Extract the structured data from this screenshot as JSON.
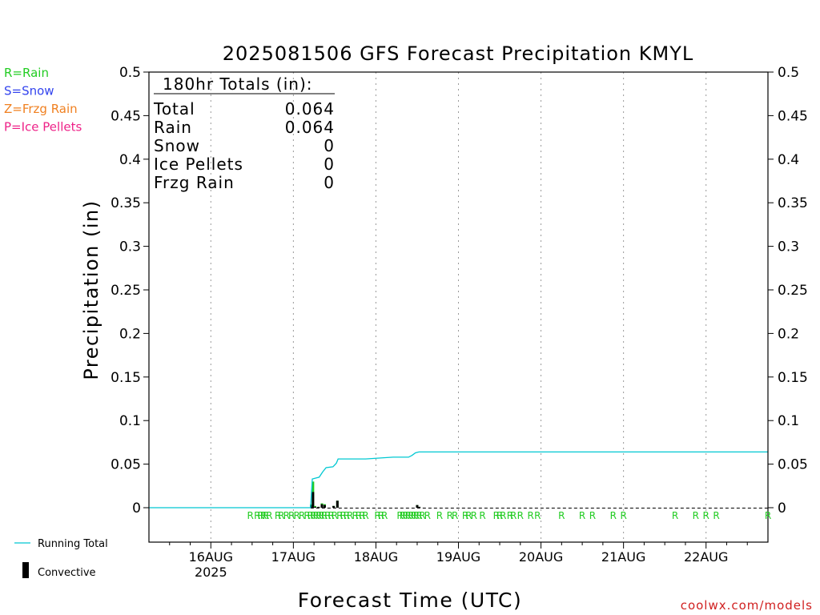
{
  "chart_data": {
    "type": "bar",
    "title": "2025081506 GFS Forecast Precipitation KMYL",
    "xlabel": "Forecast Time (UTC)",
    "ylabel": "Precipitation (in)",
    "ylim": [
      0,
      0.5
    ],
    "xlim_hours": [
      0,
      180
    ],
    "y_ticks": [
      0,
      0.05,
      0.1,
      0.15,
      0.2,
      0.25,
      0.3,
      0.35,
      0.4,
      0.45,
      0.5
    ],
    "y_tick_labels": [
      "0",
      "0.05",
      "0.1",
      "0.15",
      "0.2",
      "0.25",
      "0.3",
      "0.35",
      "0.4",
      "0.45",
      "0.5"
    ],
    "x_ticks": [
      {
        "label": "16AUG",
        "sublabel": "2025",
        "hour": 18
      },
      {
        "label": "17AUG",
        "sublabel": "",
        "hour": 42
      },
      {
        "label": "18AUG",
        "sublabel": "",
        "hour": 66
      },
      {
        "label": "19AUG",
        "sublabel": "",
        "hour": 90
      },
      {
        "label": "20AUG",
        "sublabel": "",
        "hour": 114
      },
      {
        "label": "21AUG",
        "sublabel": "",
        "hour": 138
      },
      {
        "label": "22AUG",
        "sublabel": "",
        "hour": 162
      }
    ],
    "grid": true,
    "totals_box": {
      "header": "180hr Totals (in):",
      "rows": [
        {
          "label": "Total",
          "value": "0.064"
        },
        {
          "label": "Rain",
          "value": "0.064"
        },
        {
          "label": "Snow",
          "value": "0"
        },
        {
          "label": "Ice Pellets",
          "value": "0"
        },
        {
          "label": "Frzg Rain",
          "value": "0"
        }
      ]
    },
    "ptype_legend": [
      {
        "label": "R=Rain",
        "color": "#22cc22"
      },
      {
        "label": "S=Snow",
        "color": "#3344ee"
      },
      {
        "label": "Z=Frzg Rain",
        "color": "#f08020"
      },
      {
        "label": "P=Ice Pellets",
        "color": "#ee2288"
      }
    ],
    "series": [
      {
        "name": "Running Total",
        "color": "#00c8d2",
        "points": [
          [
            0,
            0
          ],
          [
            47,
            0
          ],
          [
            47.5,
            0.033
          ],
          [
            48.5,
            0.034
          ],
          [
            49.5,
            0.035
          ],
          [
            50.5,
            0.041
          ],
          [
            51.5,
            0.046
          ],
          [
            53.5,
            0.047
          ],
          [
            54.5,
            0.051
          ],
          [
            55,
            0.056
          ],
          [
            63,
            0.056
          ],
          [
            67,
            0.057
          ],
          [
            71,
            0.058
          ],
          [
            75.5,
            0.058
          ],
          [
            76.5,
            0.06
          ],
          [
            77.5,
            0.063
          ],
          [
            78.5,
            0.064
          ],
          [
            180,
            0.064
          ]
        ]
      },
      {
        "name": "Convective",
        "color": "#000000"
      }
    ],
    "bars": [
      {
        "hour": 47.2,
        "total": 0.004,
        "conv": 0.003
      },
      {
        "hour": 47.7,
        "total": 0.03,
        "conv": 0.018
      },
      {
        "hour": 48.3,
        "total": 0.002,
        "conv": 0.001
      },
      {
        "hour": 49.3,
        "total": 0.001,
        "conv": 0.001
      },
      {
        "hour": 50.3,
        "total": 0.005,
        "conv": 0.004
      },
      {
        "hour": 51.1,
        "total": 0.004,
        "conv": 0.003
      },
      {
        "hour": 53.7,
        "total": 0.002,
        "conv": 0.002
      },
      {
        "hour": 54.8,
        "total": 0.008,
        "conv": 0.008
      },
      {
        "hour": 78.0,
        "total": 0.003,
        "conv": 0.003
      },
      {
        "hour": 78.6,
        "total": 0.001,
        "conv": 0.001
      }
    ],
    "ptype_marks": [
      {
        "hour": 29.5,
        "label": "R"
      },
      {
        "hour": 31.5,
        "label": "R"
      },
      {
        "hour": 32.5,
        "label": "R"
      },
      {
        "hour": 33.3,
        "label": "R"
      },
      {
        "hour": 34,
        "label": "R"
      },
      {
        "hour": 35,
        "label": "R"
      },
      {
        "hour": 37.5,
        "label": "R"
      },
      {
        "hour": 38.5,
        "label": "R"
      },
      {
        "hour": 40,
        "label": "R"
      },
      {
        "hour": 41.5,
        "label": "R"
      },
      {
        "hour": 43,
        "label": "R"
      },
      {
        "hour": 44.5,
        "label": "R"
      },
      {
        "hour": 46,
        "label": "R"
      },
      {
        "hour": 47,
        "label": "R"
      },
      {
        "hour": 47.8,
        "label": "R"
      },
      {
        "hour": 48.6,
        "label": "R"
      },
      {
        "hour": 49.4,
        "label": "R"
      },
      {
        "hour": 50.2,
        "label": "R"
      },
      {
        "hour": 51,
        "label": "R"
      },
      {
        "hour": 52,
        "label": "R"
      },
      {
        "hour": 53,
        "label": "R"
      },
      {
        "hour": 54,
        "label": "R"
      },
      {
        "hour": 55.5,
        "label": "R"
      },
      {
        "hour": 56.5,
        "label": "R"
      },
      {
        "hour": 57.5,
        "label": "R"
      },
      {
        "hour": 58.5,
        "label": "R"
      },
      {
        "hour": 60,
        "label": "R"
      },
      {
        "hour": 61,
        "label": "R"
      },
      {
        "hour": 62,
        "label": "R"
      },
      {
        "hour": 63,
        "label": "R"
      },
      {
        "hour": 66.5,
        "label": "R"
      },
      {
        "hour": 67.5,
        "label": "R"
      },
      {
        "hour": 68.5,
        "label": "R"
      },
      {
        "hour": 73,
        "label": "R"
      },
      {
        "hour": 73.8,
        "label": "R"
      },
      {
        "hour": 74.6,
        "label": "R"
      },
      {
        "hour": 75.4,
        "label": "R"
      },
      {
        "hour": 76.2,
        "label": "R"
      },
      {
        "hour": 77,
        "label": "R"
      },
      {
        "hour": 77.8,
        "label": "R"
      },
      {
        "hour": 78.6,
        "label": "R"
      },
      {
        "hour": 79.5,
        "label": "R"
      },
      {
        "hour": 81,
        "label": "R"
      },
      {
        "hour": 84.5,
        "label": "R"
      },
      {
        "hour": 87.5,
        "label": "R"
      },
      {
        "hour": 89,
        "label": "R"
      },
      {
        "hour": 92,
        "label": "R"
      },
      {
        "hour": 93,
        "label": "R"
      },
      {
        "hour": 94.5,
        "label": "R"
      },
      {
        "hour": 97,
        "label": "R"
      },
      {
        "hour": 101,
        "label": "R"
      },
      {
        "hour": 102,
        "label": "R"
      },
      {
        "hour": 103,
        "label": "R"
      },
      {
        "hour": 105,
        "label": "R"
      },
      {
        "hour": 106,
        "label": "R"
      },
      {
        "hour": 108,
        "label": "R"
      },
      {
        "hour": 111,
        "label": "R"
      },
      {
        "hour": 113,
        "label": "R"
      },
      {
        "hour": 120,
        "label": "R"
      },
      {
        "hour": 126,
        "label": "R"
      },
      {
        "hour": 129,
        "label": "R"
      },
      {
        "hour": 135,
        "label": "R"
      },
      {
        "hour": 138,
        "label": "R"
      },
      {
        "hour": 153,
        "label": "R"
      },
      {
        "hour": 159,
        "label": "R"
      },
      {
        "hour": 162,
        "label": "R"
      },
      {
        "hour": 165,
        "label": "R"
      },
      {
        "hour": 180,
        "label": "R"
      }
    ],
    "series_legend": [
      {
        "label": "Running Total",
        "color": "#00c8d2"
      },
      {
        "label": "Convective",
        "color": "#000000"
      }
    ],
    "credit": "coolwx.com/models"
  }
}
